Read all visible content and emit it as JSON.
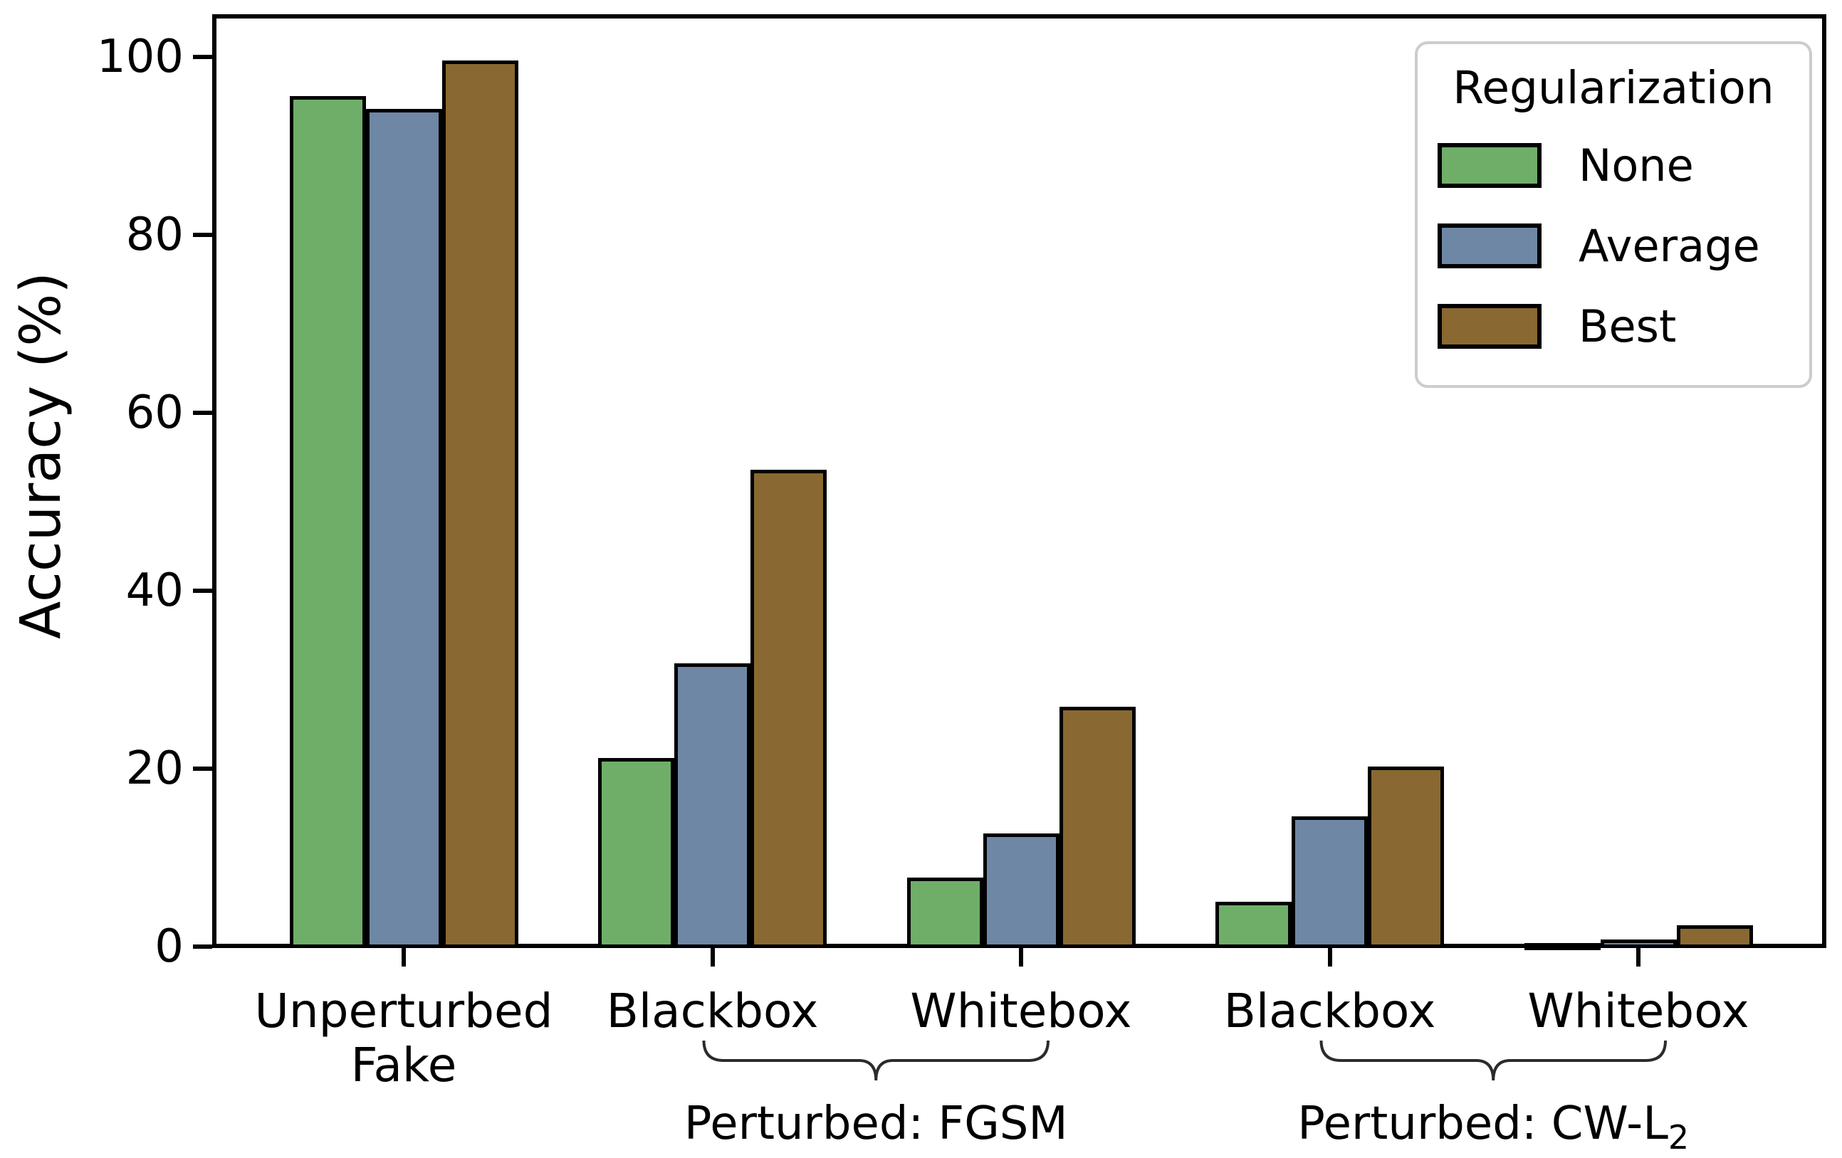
{
  "chart_data": {
    "type": "bar",
    "title": "",
    "ylabel": "Accuracy (%)",
    "yticks": [
      0,
      20,
      40,
      60,
      80,
      100
    ],
    "ylim": [
      0,
      104.5
    ],
    "grid": false,
    "categories": [
      "Unperturbed\nFake",
      "Blackbox",
      "Whitebox",
      "Blackbox",
      "Whitebox"
    ],
    "legend": {
      "title": "Regularization",
      "position": "upper right"
    },
    "series": [
      {
        "name": "None",
        "color": "#6FAE69",
        "values": [
          95.4,
          21.0,
          7.5,
          4.8,
          0.2
        ]
      },
      {
        "name": "Average",
        "color": "#6E87A5",
        "values": [
          93.9,
          31.6,
          12.5,
          14.4,
          0.6
        ]
      },
      {
        "name": "Best",
        "color": "#8A6831",
        "values": [
          99.4,
          53.4,
          26.7,
          20.0,
          2.2
        ]
      }
    ],
    "bar_edge_color": "#000000",
    "annotations": [
      {
        "label": "Perturbed: FGSM",
        "sub": "",
        "from_group": 1,
        "to_group": 2
      },
      {
        "label": "Perturbed: CW-L",
        "sub": "2",
        "from_group": 3,
        "to_group": 4
      }
    ]
  }
}
